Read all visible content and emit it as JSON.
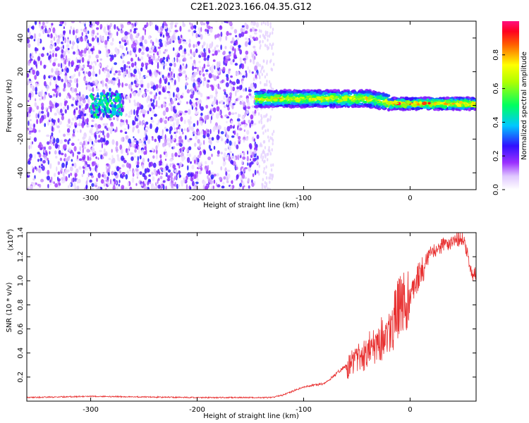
{
  "title": "C2E1.2023.166.04.35.G12",
  "colors": {
    "snr_line": "#e83030",
    "frame": "#000000",
    "background": "#ffffff"
  },
  "chart_data": [
    {
      "type": "heatmap",
      "name": "spectrogram",
      "xlabel": "Height of straight line (km)",
      "ylabel": "Frequency (Hz)",
      "xlim": [
        -360,
        62
      ],
      "ylim": [
        -50,
        50
      ],
      "x_ticks": [
        "-300",
        "-200",
        "-100",
        "0"
      ],
      "y_ticks": [
        "40",
        "20",
        "0",
        "-20",
        "-40"
      ],
      "colorbar": {
        "label": "Normalized spectral amplitude",
        "range": [
          0.0,
          1.0
        ],
        "ticks": [
          "0.0",
          "0.2",
          "0.4",
          "0.6",
          "0.8"
        ],
        "colormap": "white-violet-purple-blue-cyan-green-yellow-red-pink"
      },
      "regions": [
        {
          "x_range": [
            -360,
            -143
          ],
          "description": "scattered noise speckles across all frequencies, amplitude ~0.1-0.3"
        },
        {
          "x_range": [
            -300,
            -270
          ],
          "frequency_center": 0,
          "amplitude": 0.35
        },
        {
          "x_range": [
            -145,
            -20
          ],
          "frequency_center": 4,
          "amplitude": 0.7
        },
        {
          "x_range": [
            -20,
            62
          ],
          "frequency_center": 1,
          "amplitude": 0.85
        }
      ]
    },
    {
      "type": "line",
      "name": "snr",
      "xlabel": "Height of straight line (km)",
      "ylabel": "SNR (10 * v/v)",
      "y_multiplier_label": "(x10",
      "y_multiplier_exp": "4",
      "y_multiplier_close": ")",
      "xlim": [
        -360,
        62
      ],
      "ylim": [
        0,
        1.4
      ],
      "x_ticks": [
        "-300",
        "-200",
        "-100",
        "0"
      ],
      "y_ticks": [
        "1.4",
        "1.2",
        "1.0",
        "0.8",
        "0.6",
        "0.4",
        "0.2"
      ],
      "x": [
        -360,
        -300,
        -200,
        -130,
        -120,
        -100,
        -80,
        -60,
        -40,
        -30,
        -20,
        -10,
        0,
        10,
        20,
        30,
        40,
        50,
        55,
        58,
        62
      ],
      "y": [
        0.03,
        0.04,
        0.03,
        0.03,
        0.05,
        0.12,
        0.15,
        0.3,
        0.45,
        0.55,
        0.6,
        0.85,
        0.9,
        1.1,
        1.25,
        1.3,
        1.35,
        1.37,
        1.2,
        1.05,
        1.08
      ]
    }
  ]
}
